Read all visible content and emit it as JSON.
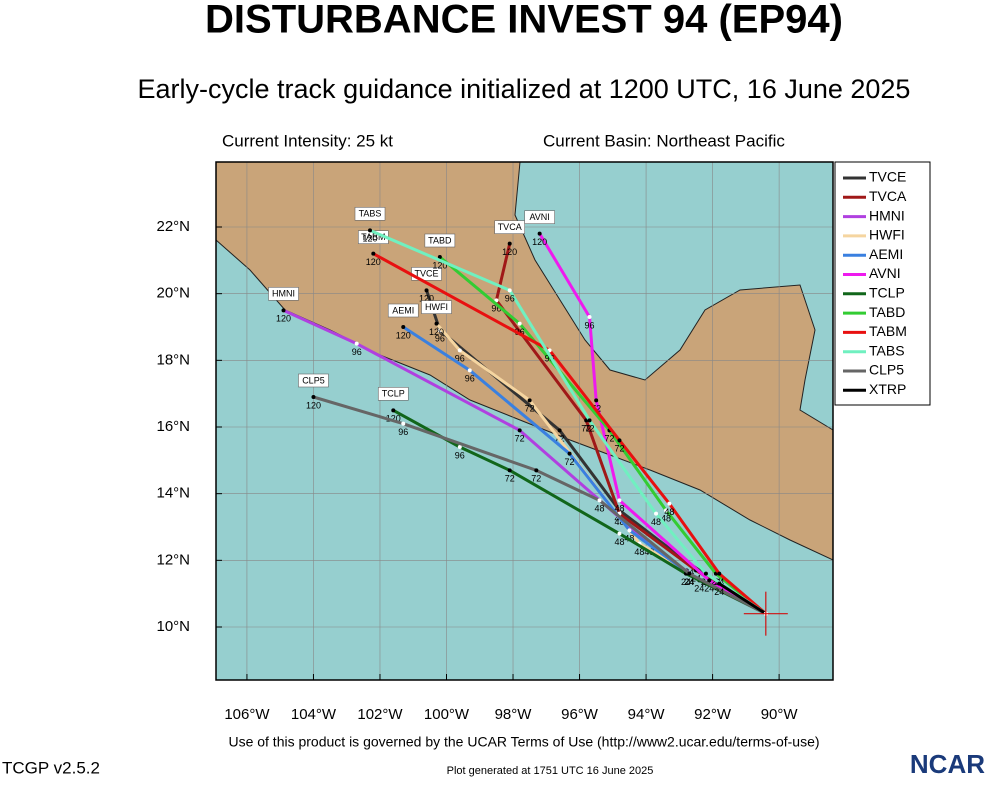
{
  "header": {
    "title": "DISTURBANCE INVEST 94 (EP94)",
    "subtitle": "Early-cycle track guidance initialized at 1200 UTC, 16 June 2025",
    "intensity": "Current Intensity: 25 kt",
    "basin": "Current Basin: Northeast Pacific"
  },
  "map": {
    "xlim": [
      -106.93,
      -88.38
    ],
    "ylim": [
      8.41,
      23.95
    ],
    "xticks": [
      {
        "value": -106,
        "label": "106°W"
      },
      {
        "value": -104,
        "label": "104°W"
      },
      {
        "value": -102,
        "label": "102°W"
      },
      {
        "value": -100,
        "label": "100°W"
      },
      {
        "value": -98,
        "label": "98°W"
      },
      {
        "value": -96,
        "label": "96°W"
      },
      {
        "value": -94,
        "label": "94°W"
      },
      {
        "value": -92,
        "label": "92°W"
      },
      {
        "value": -90,
        "label": "90°W"
      }
    ],
    "yticks": [
      {
        "value": 10,
        "label": "10°N"
      },
      {
        "value": 12,
        "label": "12°N"
      },
      {
        "value": 14,
        "label": "14°N"
      },
      {
        "value": 16,
        "label": "16°N"
      },
      {
        "value": 18,
        "label": "18°N"
      },
      {
        "value": 20,
        "label": "20°N"
      },
      {
        "value": 22,
        "label": "22°N"
      }
    ],
    "current_position": {
      "lon": -90.4,
      "lat": 10.4
    },
    "tracks": [
      {
        "name": "TVCE",
        "color": "#333333",
        "lon": [
          -90.4,
          -92.7,
          -94.8,
          -96.6,
          -100.2,
          -100.6
        ],
        "lat": [
          10.4,
          11.9,
          13.5,
          15.9,
          18.9,
          20.1
        ],
        "hours": [
          null,
          24,
          48,
          72,
          96,
          120
        ]
      },
      {
        "name": "TVCA",
        "color": "#a01818",
        "lon": [
          -90.4,
          -92.5,
          -94.8,
          -95.8,
          -98.5,
          -98.1
        ],
        "lat": [
          10.4,
          11.7,
          13.4,
          16.2,
          19.8,
          21.5
        ],
        "hours": [
          null,
          24,
          48,
          72,
          96,
          120
        ]
      },
      {
        "name": "HMNI",
        "color": "#b040e0",
        "lon": [
          -90.4,
          -92.4,
          -93.9,
          -97.8,
          -102.7,
          -104.9
        ],
        "lat": [
          10.4,
          11.4,
          12.5,
          15.9,
          18.5,
          19.5
        ],
        "hours": [
          null,
          24,
          48,
          72,
          96,
          120
        ]
      },
      {
        "name": "HWFI",
        "color": "#f5d5a0",
        "lon": [
          -90.4,
          -92.7,
          -94.2,
          -97.5,
          -99.6,
          -100.3
        ],
        "lat": [
          10.4,
          11.6,
          12.5,
          16.8,
          18.3,
          19.1
        ],
        "hours": [
          null,
          24,
          48,
          72,
          96,
          120
        ]
      },
      {
        "name": "AEMI",
        "color": "#3a80e0",
        "lon": [
          -90.4,
          -92.7,
          -94.5,
          -96.3,
          -99.3,
          -101.3
        ],
        "lat": [
          10.4,
          11.6,
          12.9,
          15.2,
          17.7,
          19.0
        ],
        "hours": [
          null,
          24,
          48,
          72,
          96,
          120
        ]
      },
      {
        "name": "AVNI",
        "color": "#ee1aee",
        "lon": [
          -90.4,
          -92.1,
          -94.8,
          -95.5,
          -95.7,
          -97.2
        ],
        "lat": [
          10.4,
          11.4,
          13.8,
          16.8,
          19.3,
          21.8
        ],
        "hours": [
          null,
          24,
          48,
          72,
          96,
          120
        ]
      },
      {
        "name": "TCLP",
        "color": "#11661a",
        "lon": [
          -90.4,
          -92.8,
          -94.8,
          -98.1,
          -99.6,
          -101.6
        ],
        "lat": [
          10.4,
          11.6,
          12.8,
          14.7,
          15.4,
          16.5
        ],
        "hours": [
          null,
          24,
          48,
          72,
          96,
          120
        ]
      },
      {
        "name": "TABD",
        "color": "#33cc33",
        "lon": [
          -90.4,
          -91.9,
          -93.4,
          -95.1,
          -97.8,
          -100.2
        ],
        "lat": [
          10.4,
          11.6,
          13.5,
          15.9,
          19.1,
          21.1
        ],
        "hours": [
          null,
          24,
          48,
          72,
          96,
          120
        ]
      },
      {
        "name": "TABM",
        "color": "#e81010",
        "lon": [
          -90.4,
          -91.8,
          -93.3,
          -94.8,
          -96.9,
          -102.2
        ],
        "lat": [
          10.4,
          11.6,
          13.7,
          15.6,
          18.3,
          21.2
        ],
        "hours": [
          null,
          24,
          48,
          72,
          96,
          120
        ]
      },
      {
        "name": "TABS",
        "color": "#70f0c0",
        "lon": [
          -90.4,
          -92.2,
          -93.7,
          -95.7,
          -98.1,
          -102.3
        ],
        "lat": [
          10.4,
          11.6,
          13.4,
          16.2,
          20.1,
          21.9
        ],
        "hours": [
          null,
          24,
          48,
          72,
          96,
          120
        ]
      },
      {
        "name": "CLP5",
        "color": "#666666",
        "lon": [
          -90.4,
          -92.7,
          -95.4,
          -97.3,
          -101.3,
          -104.0
        ],
        "lat": [
          10.4,
          11.6,
          13.8,
          14.7,
          16.1,
          16.9
        ],
        "hours": [
          null,
          24,
          48,
          72,
          96,
          120
        ]
      },
      {
        "name": "XTRP",
        "color": "#000000",
        "lon": [
          -90.4,
          -91.8
        ],
        "lat": [
          10.4,
          11.3
        ],
        "hours": [
          null,
          24
        ]
      }
    ]
  },
  "footer": {
    "terms": "Use of this product is governed by the UCAR Terms of Use (http://www2.ucar.edu/terms-of-use)",
    "version": "TCGP v2.5.2",
    "generated": "Plot generated at 1751 UTC   16 June 2025",
    "logo": "NCAR"
  }
}
